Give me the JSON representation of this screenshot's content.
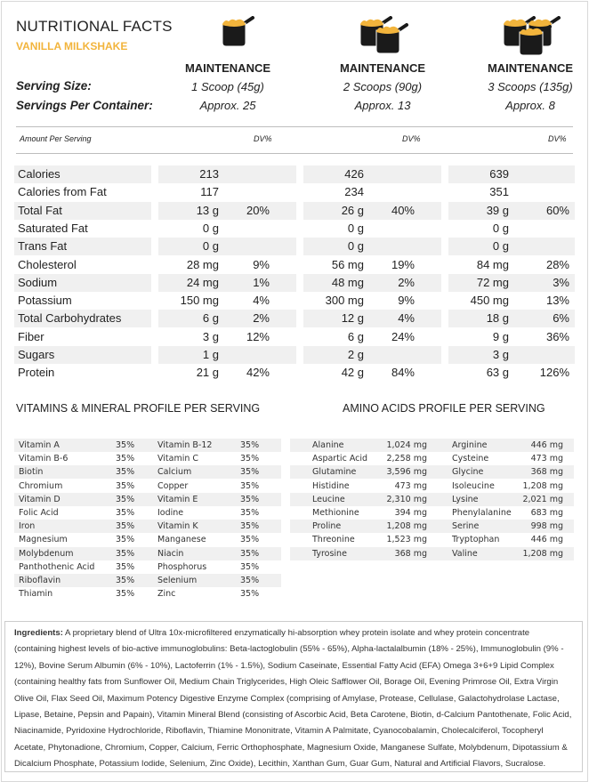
{
  "header": {
    "title": "NUTRITIONAL FACTS",
    "flavor": "VANILLA MILKSHAKE",
    "accent_color": "#f2b43c"
  },
  "serving_labels": {
    "size": "Serving Size:",
    "per_container": "Servings Per Container:"
  },
  "columns": [
    {
      "icon": "one-scoop-icon",
      "heading": "MAINTENANCE",
      "serving_size": "1 Scoop (45g)",
      "servings": "Approx. 25"
    },
    {
      "icon": "two-scoops-icon",
      "heading": "MAINTENANCE",
      "serving_size": "2 Scoops (90g)",
      "servings": "Approx. 13"
    },
    {
      "icon": "three-scoops-icon",
      "heading": "MAINTENANCE",
      "serving_size": "3 Scoops (135g)",
      "servings": "Approx. 8"
    }
  ],
  "amount_label": "Amount Per Serving",
  "dv_label": "DV%",
  "nutrients": [
    {
      "name": "Calories",
      "v": [
        "213",
        "426",
        "639"
      ],
      "dv": [
        "",
        "",
        ""
      ]
    },
    {
      "name": "Calories from Fat",
      "v": [
        "117",
        "234",
        "351"
      ],
      "dv": [
        "",
        "",
        ""
      ]
    },
    {
      "name": "Total Fat",
      "v": [
        "13 g",
        "26 g",
        "39 g"
      ],
      "dv": [
        "20%",
        "40%",
        "60%"
      ]
    },
    {
      "name": "Saturated Fat",
      "v": [
        "0 g",
        "0 g",
        "0 g"
      ],
      "dv": [
        "",
        "",
        ""
      ]
    },
    {
      "name": "Trans Fat",
      "v": [
        "0 g",
        "0 g",
        "0 g"
      ],
      "dv": [
        "",
        "",
        ""
      ]
    },
    {
      "name": "Cholesterol",
      "v": [
        "28 mg",
        "56 mg",
        "84 mg"
      ],
      "dv": [
        "9%",
        "19%",
        "28%"
      ]
    },
    {
      "name": "Sodium",
      "v": [
        "24 mg",
        "48 mg",
        "72 mg"
      ],
      "dv": [
        "1%",
        "2%",
        "3%"
      ]
    },
    {
      "name": "Potassium",
      "v": [
        "150 mg",
        "300 mg",
        "450 mg"
      ],
      "dv": [
        "4%",
        "9%",
        "13%"
      ]
    },
    {
      "name": "Total Carbohydrates",
      "v": [
        "6 g",
        "12 g",
        "18 g"
      ],
      "dv": [
        "2%",
        "4%",
        "6%"
      ]
    },
    {
      "name": "Fiber",
      "v": [
        "3 g",
        "6 g",
        "9 g"
      ],
      "dv": [
        "12%",
        "24%",
        "36%"
      ]
    },
    {
      "name": "Sugars",
      "v": [
        "1 g",
        "2 g",
        "3 g"
      ],
      "dv": [
        "",
        "",
        ""
      ]
    },
    {
      "name": "Protein",
      "v": [
        "21 g",
        "42 g",
        "63 g"
      ],
      "dv": [
        "42%",
        "84%",
        "126%"
      ]
    }
  ],
  "vitamins": {
    "title": "VITAMINS & MINERAL PROFILE PER SERVING",
    "rows": [
      [
        "Vitamin A",
        "35%",
        "Vitamin B-12",
        "35%"
      ],
      [
        "Vitamin B-6",
        "35%",
        "Vitamin C",
        "35%"
      ],
      [
        "Biotin",
        "35%",
        "Calcium",
        "35%"
      ],
      [
        "Chromium",
        "35%",
        "Copper",
        "35%"
      ],
      [
        "Vitamin D",
        "35%",
        "Vitamin E",
        "35%"
      ],
      [
        "Folic Acid",
        "35%",
        "Iodine",
        "35%"
      ],
      [
        "Iron",
        "35%",
        "Vitamin K",
        "35%"
      ],
      [
        "Magnesium",
        "35%",
        "Manganese",
        "35%"
      ],
      [
        "Molybdenum",
        "35%",
        "Niacin",
        "35%"
      ],
      [
        "Panthothenic Acid",
        "35%",
        "Phosphorus",
        "35%"
      ],
      [
        "Riboflavin",
        "35%",
        "Selenium",
        "35%"
      ],
      [
        "Thiamin",
        "35%",
        "Zinc",
        "35%"
      ]
    ]
  },
  "amino": {
    "title": "AMINO ACIDS PROFILE PER SERVING",
    "rows": [
      [
        "Alanine",
        "1,024 mg",
        "Arginine",
        "446 mg"
      ],
      [
        "Aspartic Acid",
        "2,258 mg",
        "Cysteine",
        "473 mg"
      ],
      [
        "Glutamine",
        "3,596 mg",
        "Glycine",
        "368 mg"
      ],
      [
        "Histidine",
        "473 mg",
        "Isoleucine",
        "1,208 mg"
      ],
      [
        "Leucine",
        "2,310 mg",
        "Lysine",
        "2,021 mg"
      ],
      [
        "Methionine",
        "394 mg",
        "Phenylalanine",
        "683 mg"
      ],
      [
        "Proline",
        "1,208 mg",
        "Serine",
        "998 mg"
      ],
      [
        "Threonine",
        "1,523 mg",
        "Tryptophan",
        "446 mg"
      ],
      [
        "Tyrosine",
        "368 mg",
        "Valine",
        "1,208 mg"
      ]
    ]
  },
  "ingredients": {
    "label": "Ingredients:",
    "text": " A proprietary blend of Ultra 10x-microfiltered enzymatically hi-absorption whey protein isolate and whey protein concentrate (containing highest levels of bio-active immunoglobulins:  Beta-lactoglobulin (55% - 65%), Alpha-lactalalbumin (18% - 25%), Immunoglobulin (9% - 12%), Bovine Serum Albumin (6% - 10%), Lactoferrin (1% - 1.5%), Sodium Caseinate, Essential Fatty Acid (EFA) Omega 3+6+9 Lipid Complex (containing healthy fats from Sunflower Oil, Medium Chain Triglycerides, High Oleic Safflower Oil, Borage Oil, Evening Primrose Oil, Extra Virgin Olive Oil, Flax Seed Oil, Maximum Potency Digestive Enzyme Complex (comprising of Amylase, Protease, Cellulase, Galactohydrolase Lactase, Lipase, Betaine, Pepsin and Papain), Vitamin Mineral Blend (consisting of Ascorbic Acid, Beta Carotene, Biotin, d-Calcium Pantothenate, Folic Acid, Niacinamide, Pyridoxine Hydrochloride, Riboflavin, Thiamine Mononitrate, Vitamin A Palmitate, Cyanocobalamin, Cholecalciferol, Tocopheryl Acetate, Phytonadione, Chromium, Copper, Calcium, Ferric Orthophosphate, Magnesium Oxide, Manganese Sulfate, Molybdenum, Dipotassium & Dicalcium Phosphate, Potassium Iodide, Selenium, Zinc Oxide), Lecithin, Xanthan Gum, Guar Gum, Natural and Artificial Flavors, Sucralose."
  }
}
